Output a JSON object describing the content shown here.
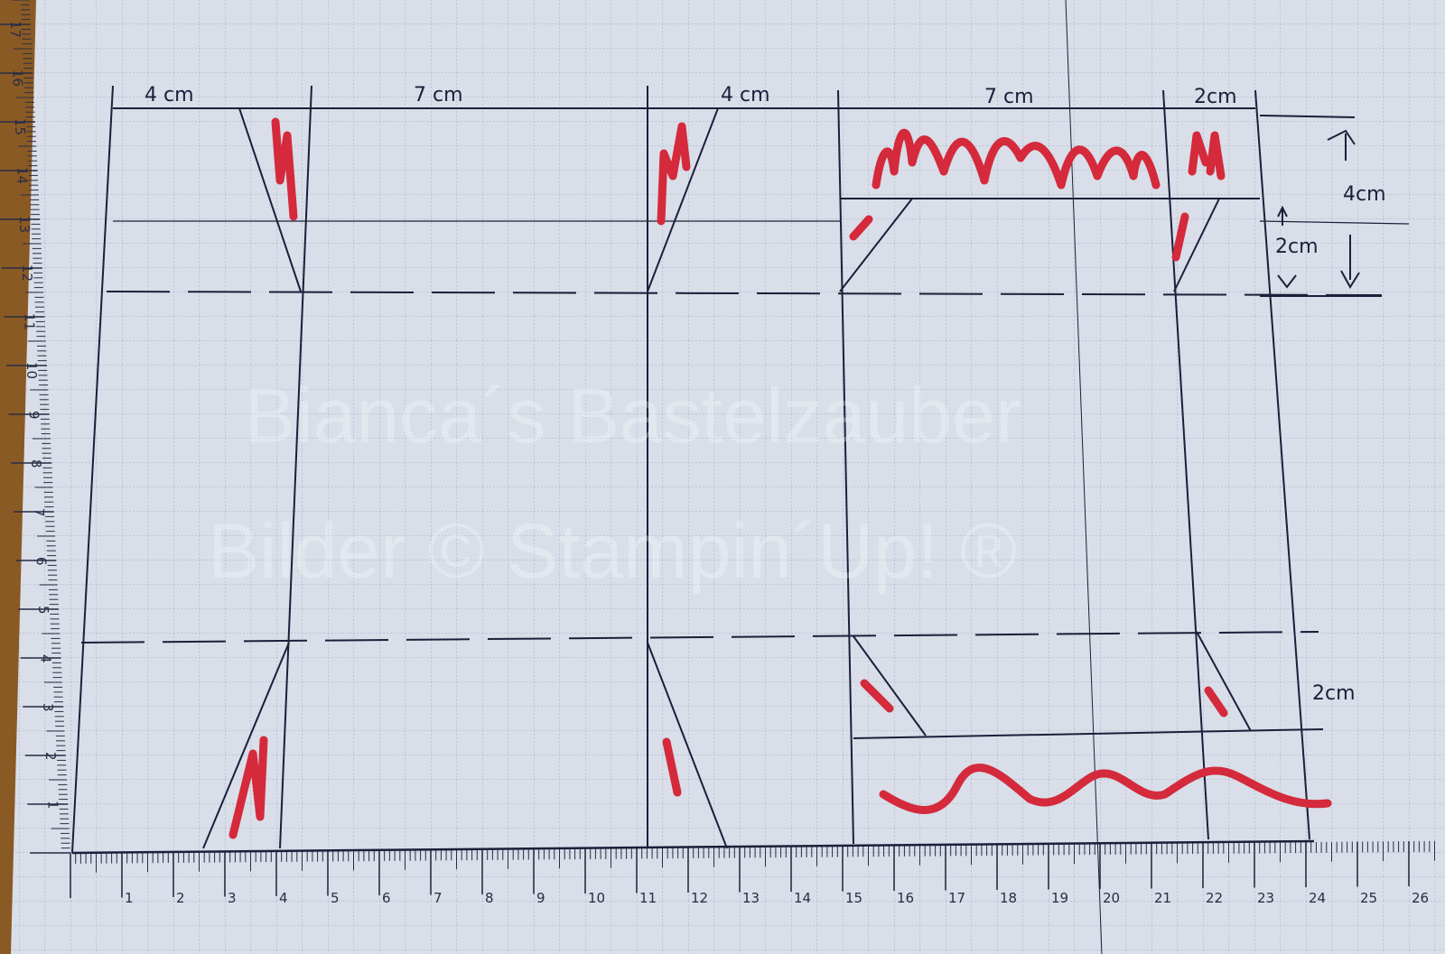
{
  "dimension_labels": {
    "top_1": "4 cm",
    "top_2": "7 cm",
    "top_3": "4 cm",
    "top_4": "7 cm",
    "top_5": "2cm",
    "right_4cm": "4cm",
    "right_2cm": "2cm",
    "right_bottom_2cm": "2cm"
  },
  "watermark": {
    "line1": "Bianca´s Bastelzauber",
    "line2": "Bilder © Stampin´Up! ®"
  },
  "ruler_bottom": [
    "1",
    "2",
    "3",
    "4",
    "5",
    "6",
    "7",
    "8",
    "9",
    "10",
    "11",
    "12",
    "13",
    "14",
    "15",
    "16",
    "17",
    "18",
    "19",
    "20",
    "21",
    "22",
    "23",
    "24",
    "25",
    "26"
  ],
  "ruler_left": [
    "1",
    "2",
    "3",
    "4",
    "5",
    "6",
    "7",
    "8",
    "9",
    "10",
    "11",
    "12",
    "13",
    "14",
    "15",
    "16",
    "17"
  ],
  "colors": {
    "paper": "#d9dee8",
    "grid": "#9fb0c8",
    "pencil": "#1c1f3a",
    "marker": "#d42a3c",
    "wood": "#8a5a24"
  }
}
